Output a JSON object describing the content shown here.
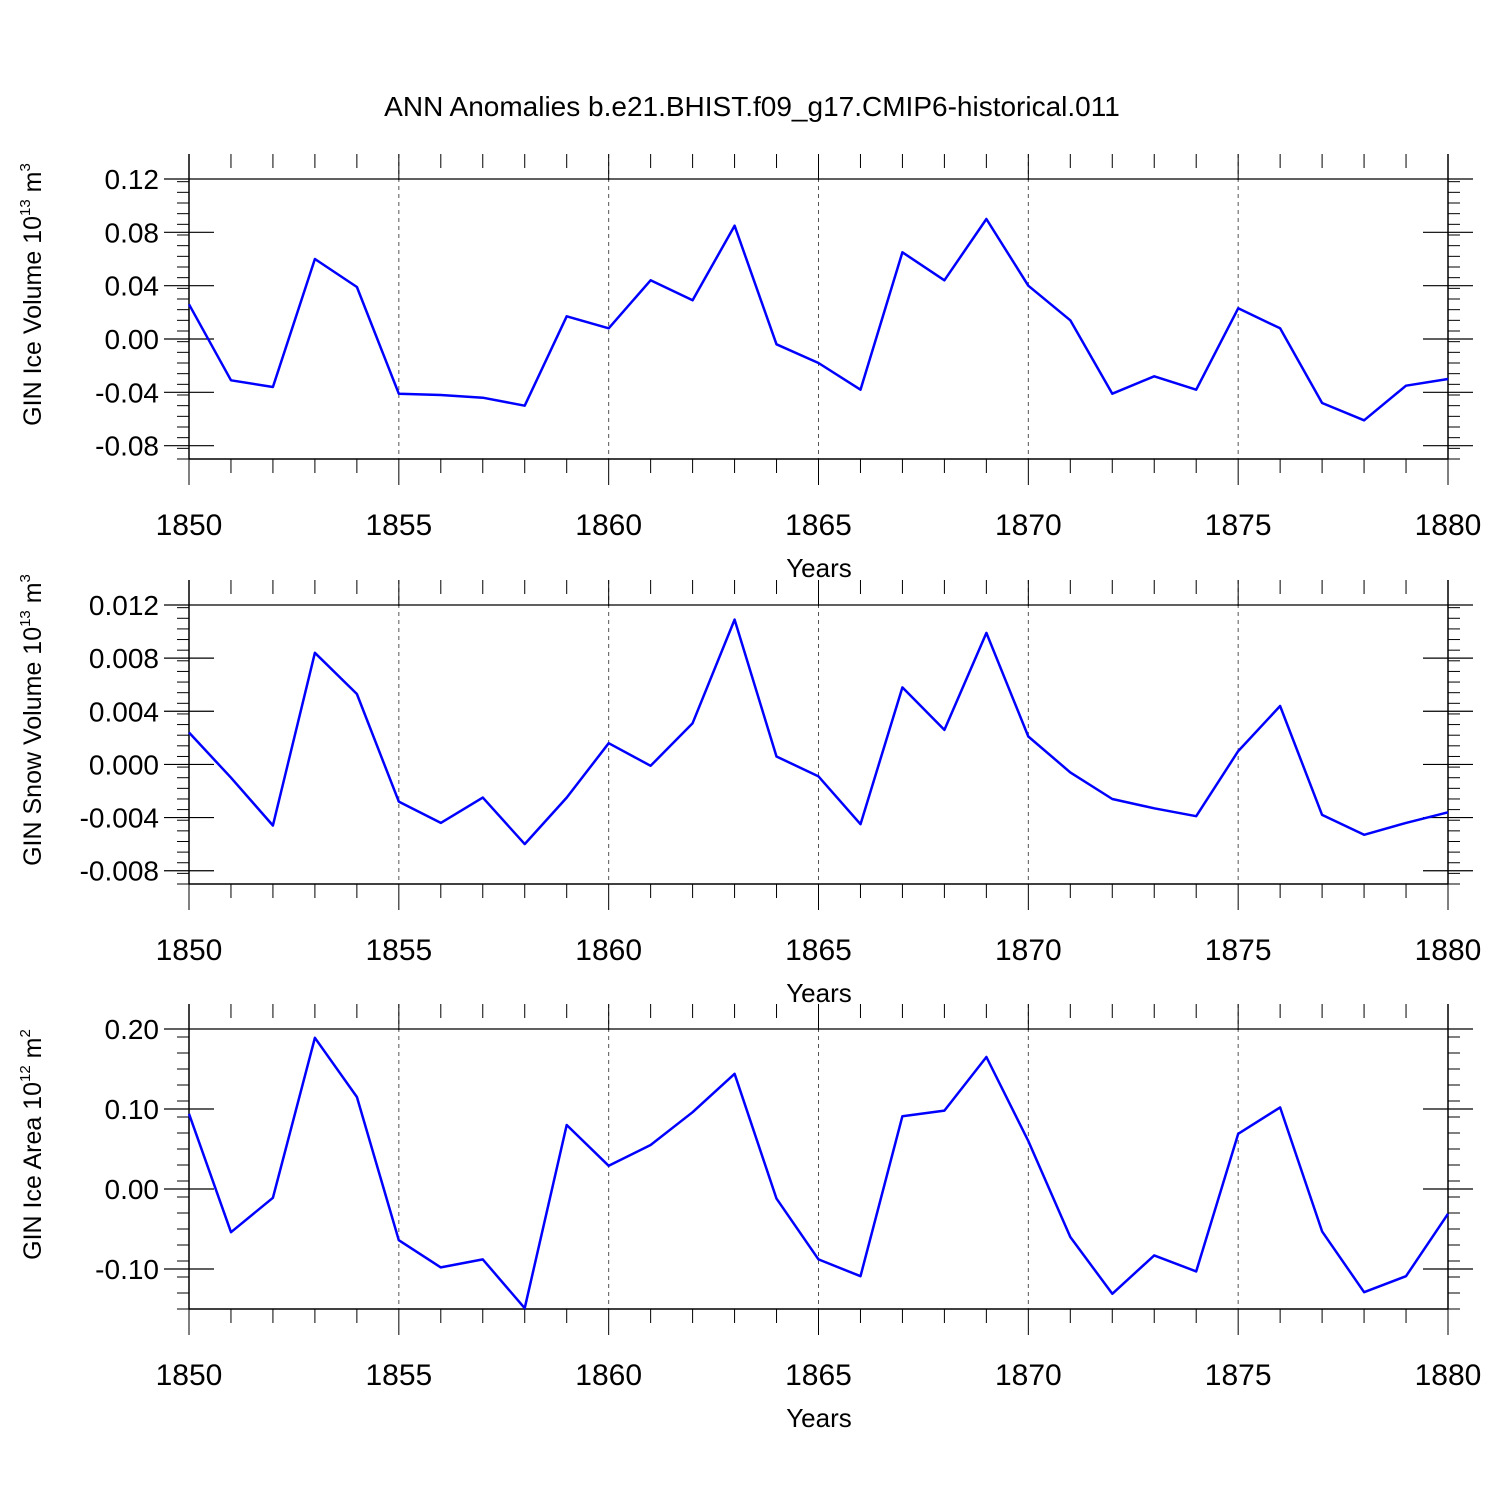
{
  "title": "ANN Anomalies b.e21.BHIST.f09_g17.CMIP6-historical.011",
  "colors": {
    "line": "#0000ff",
    "axis": "#000000",
    "grid": "#555555"
  },
  "chart_data": [
    {
      "type": "line",
      "title": "",
      "xlabel": "Years",
      "ylabel": {
        "main": "GIN Ice Volume 10",
        "exp": "13",
        "unit": " m",
        "unit_exp": "3"
      },
      "xlim": [
        1850,
        1880
      ],
      "ylim": [
        -0.09,
        0.12
      ],
      "xticks": [
        "1850",
        "1855",
        "1860",
        "1865",
        "1870",
        "1875",
        "1880"
      ],
      "yticks": [
        {
          "v": 0.12,
          "label": "0.12"
        },
        {
          "v": 0.08,
          "label": "0.08"
        },
        {
          "v": 0.04,
          "label": "0.04"
        },
        {
          "v": 0.0,
          "label": "0.00"
        },
        {
          "v": -0.04,
          "label": "-0.04"
        },
        {
          "v": -0.08,
          "label": "-0.08"
        }
      ],
      "x": [
        1850,
        1851,
        1852,
        1853,
        1854,
        1855,
        1856,
        1857,
        1858,
        1859,
        1860,
        1861,
        1862,
        1863,
        1864,
        1865,
        1866,
        1867,
        1868,
        1869,
        1870,
        1871,
        1872,
        1873,
        1874,
        1875,
        1876,
        1877,
        1878,
        1879,
        1880
      ],
      "values": [
        0.026,
        -0.031,
        -0.036,
        0.06,
        0.039,
        -0.041,
        -0.042,
        -0.044,
        -0.05,
        0.017,
        0.008,
        0.044,
        0.029,
        0.085,
        -0.004,
        -0.018,
        -0.038,
        0.065,
        0.044,
        0.09,
        0.04,
        0.014,
        -0.041,
        -0.028,
        -0.038,
        0.023,
        0.008,
        -0.048,
        -0.061,
        -0.035,
        -0.03
      ]
    },
    {
      "type": "line",
      "title": "",
      "xlabel": "Years",
      "ylabel": {
        "main": "GIN Snow Volume 10",
        "exp": "13",
        "unit": " m",
        "unit_exp": "3"
      },
      "xlim": [
        1850,
        1880
      ],
      "ylim": [
        -0.009,
        0.012
      ],
      "xticks": [
        "1850",
        "1855",
        "1860",
        "1865",
        "1870",
        "1875",
        "1880"
      ],
      "yticks": [
        {
          "v": 0.012,
          "label": "0.012"
        },
        {
          "v": 0.008,
          "label": "0.008"
        },
        {
          "v": 0.004,
          "label": "0.004"
        },
        {
          "v": 0.0,
          "label": "0.000"
        },
        {
          "v": -0.004,
          "label": "-0.004"
        },
        {
          "v": -0.008,
          "label": "-0.008"
        }
      ],
      "x": [
        1850,
        1851,
        1852,
        1853,
        1854,
        1855,
        1856,
        1857,
        1858,
        1859,
        1860,
        1861,
        1862,
        1863,
        1864,
        1865,
        1866,
        1867,
        1868,
        1869,
        1870,
        1871,
        1872,
        1873,
        1874,
        1875,
        1876,
        1877,
        1878,
        1879,
        1880
      ],
      "values": [
        0.0024,
        -0.001,
        -0.0046,
        0.0084,
        0.0053,
        -0.0028,
        -0.0044,
        -0.0025,
        -0.006,
        -0.0025,
        0.0016,
        -0.0001,
        0.0031,
        0.0109,
        0.0006,
        -0.0009,
        -0.0045,
        0.0058,
        0.0026,
        0.0099,
        0.0021,
        -0.0006,
        -0.0026,
        -0.0033,
        -0.0039,
        0.001,
        0.0044,
        -0.0038,
        -0.0053,
        -0.0044,
        -0.0036
      ]
    },
    {
      "type": "line",
      "title": "",
      "xlabel": "Years",
      "ylabel": {
        "main": "GIN Ice Area 10",
        "exp": "12",
        "unit": " m",
        "unit_exp": "2"
      },
      "xlim": [
        1850,
        1880
      ],
      "ylim": [
        -0.15,
        0.2
      ],
      "xticks": [
        "1850",
        "1855",
        "1860",
        "1865",
        "1870",
        "1875",
        "1880"
      ],
      "yticks": [
        {
          "v": 0.2,
          "label": "0.20"
        },
        {
          "v": 0.1,
          "label": "0.10"
        },
        {
          "v": 0.0,
          "label": "0.00"
        },
        {
          "v": -0.1,
          "label": "-0.10"
        }
      ],
      "x": [
        1850,
        1851,
        1852,
        1853,
        1854,
        1855,
        1856,
        1857,
        1858,
        1859,
        1860,
        1861,
        1862,
        1863,
        1864,
        1865,
        1866,
        1867,
        1868,
        1869,
        1870,
        1871,
        1872,
        1873,
        1874,
        1875,
        1876,
        1877,
        1878,
        1879,
        1880
      ],
      "values": [
        0.094,
        -0.054,
        -0.011,
        0.189,
        0.115,
        -0.064,
        -0.098,
        -0.088,
        -0.149,
        0.08,
        0.029,
        0.055,
        0.096,
        0.144,
        -0.012,
        -0.088,
        -0.109,
        0.091,
        0.098,
        0.165,
        0.06,
        -0.06,
        -0.131,
        -0.083,
        -0.103,
        0.069,
        0.102,
        -0.053,
        -0.129,
        -0.109,
        -0.031
      ]
    }
  ]
}
